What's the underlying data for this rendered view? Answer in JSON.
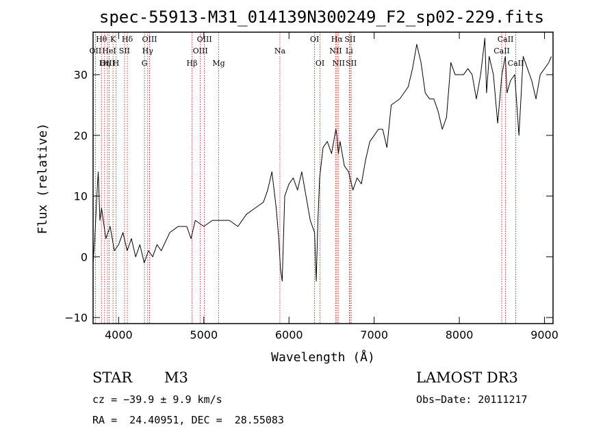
{
  "chart_data": {
    "type": "line",
    "title": "spec-55913-M31_014139N300249_F2_sp02-229.fits",
    "xlabel": "Wavelength (Å)",
    "ylabel": "Flux (relative)",
    "xlim": [
      3700,
      9100
    ],
    "ylim": [
      -11,
      37
    ],
    "x_ticks": [
      4000,
      5000,
      6000,
      7000,
      8000,
      9000
    ],
    "y_ticks": [
      -10,
      0,
      10,
      20,
      30
    ],
    "grid": false,
    "line_color": "#000000",
    "marker_color": "#cc0000",
    "series": [
      {
        "x": [
          3700,
          3720,
          3740,
          3760,
          3780,
          3800,
          3850,
          3900,
          3950,
          4000,
          4050,
          4100,
          4150,
          4200,
          4250,
          4300,
          4350,
          4400,
          4450,
          4500,
          4600,
          4700,
          4800,
          4850,
          4900,
          5000,
          5100,
          5200,
          5300,
          5400,
          5500,
          5600,
          5700,
          5750,
          5800,
          5850,
          5880,
          5900,
          5920,
          5950,
          6000,
          6050,
          6100,
          6150,
          6200,
          6250,
          6300,
          6320,
          6340,
          6360,
          6400,
          6450,
          6500,
          6550,
          6563,
          6580,
          6600,
          6650,
          6700,
          6750,
          6800,
          6850,
          6900,
          6950,
          7000,
          7050,
          7100,
          7150,
          7200,
          7300,
          7400,
          7450,
          7500,
          7550,
          7600,
          7650,
          7700,
          7750,
          7800,
          7850,
          7900,
          7950,
          8000,
          8050,
          8100,
          8150,
          8200,
          8250,
          8300,
          8320,
          8350,
          8400,
          8450,
          8500,
          8540,
          8560,
          8600,
          8650,
          8700,
          8750,
          8800,
          8850,
          8900,
          8950,
          9000,
          9050,
          9080
        ],
        "y": [
          -1,
          3,
          9,
          14,
          6,
          8,
          3,
          5,
          1,
          2,
          4,
          1,
          3,
          0,
          2,
          -1,
          1,
          0,
          2,
          1,
          4,
          5,
          5,
          3,
          6,
          5,
          6,
          6,
          6,
          5,
          7,
          8,
          9,
          11,
          14,
          8,
          3,
          -2,
          -4,
          10,
          12,
          13,
          11,
          14,
          10,
          6,
          4,
          -4,
          6,
          13,
          18,
          19,
          17,
          21,
          20,
          17,
          19,
          15,
          14,
          11,
          13,
          12,
          16,
          19,
          20,
          21,
          21,
          18,
          25,
          26,
          28,
          31,
          35,
          32,
          27,
          26,
          26,
          24,
          21,
          23,
          32,
          30,
          30,
          30,
          31,
          30,
          26,
          30,
          36,
          27,
          33,
          30,
          22,
          30,
          33,
          27,
          29,
          30,
          20,
          33,
          31,
          29,
          26,
          30,
          31,
          32,
          33
        ]
      }
    ],
    "line_markers": [
      {
        "label": "Hθ",
        "x": 3798,
        "row": 1
      },
      {
        "label": "OII",
        "x": 3727,
        "row": 2
      },
      {
        "label": "OIII",
        "x": 3869,
        "row": 3
      },
      {
        "label": "K",
        "x": 3934,
        "row": 1
      },
      {
        "label": "HeI",
        "x": 3889,
        "row": 2
      },
      {
        "label": "Hη",
        "x": 3835,
        "row": 3
      },
      {
        "label": "H",
        "x": 3969,
        "row": 3
      },
      {
        "label": "SII",
        "x": 4069,
        "row": 2
      },
      {
        "label": "Hδ",
        "x": 4102,
        "row": 1
      },
      {
        "label": "OIII",
        "x": 4363,
        "row": 1
      },
      {
        "label": "Hγ",
        "x": 4341,
        "row": 2
      },
      {
        "label": "G",
        "x": 4304,
        "row": 3
      },
      {
        "label": "Hβ",
        "x": 4861,
        "row": 3
      },
      {
        "label": "OIII",
        "x": 5007,
        "row": 1
      },
      {
        "label": "OIII",
        "x": 4959,
        "row": 2
      },
      {
        "label": "Mg",
        "x": 5175,
        "row": 3
      },
      {
        "label": "Na",
        "x": 5893,
        "row": 2
      },
      {
        "label": "OI",
        "x": 6300,
        "row": 1
      },
      {
        "label": "OI",
        "x": 6364,
        "row": 3
      },
      {
        "label": "Hα",
        "x": 6563,
        "row": 1
      },
      {
        "label": "SII",
        "x": 6717,
        "row": 1
      },
      {
        "label": "NII",
        "x": 6548,
        "row": 2
      },
      {
        "label": "Li",
        "x": 6708,
        "row": 2
      },
      {
        "label": "NII",
        "x": 6583,
        "row": 3
      },
      {
        "label": "SII",
        "x": 6731,
        "row": 3
      },
      {
        "label": "CaII",
        "x": 8542,
        "row": 1
      },
      {
        "label": "CaII",
        "x": 8498,
        "row": 2
      },
      {
        "label": "CaII",
        "x": 8662,
        "row": 3
      }
    ]
  },
  "info": {
    "object_class": "STAR",
    "subclass": "M3",
    "survey": "LAMOST DR3",
    "cz": "cz = −39.9 ± 9.9 km/s",
    "obs_date": "Obs−Date: 20111217",
    "coords": "RA =  24.40951, DEC =  28.55083"
  }
}
